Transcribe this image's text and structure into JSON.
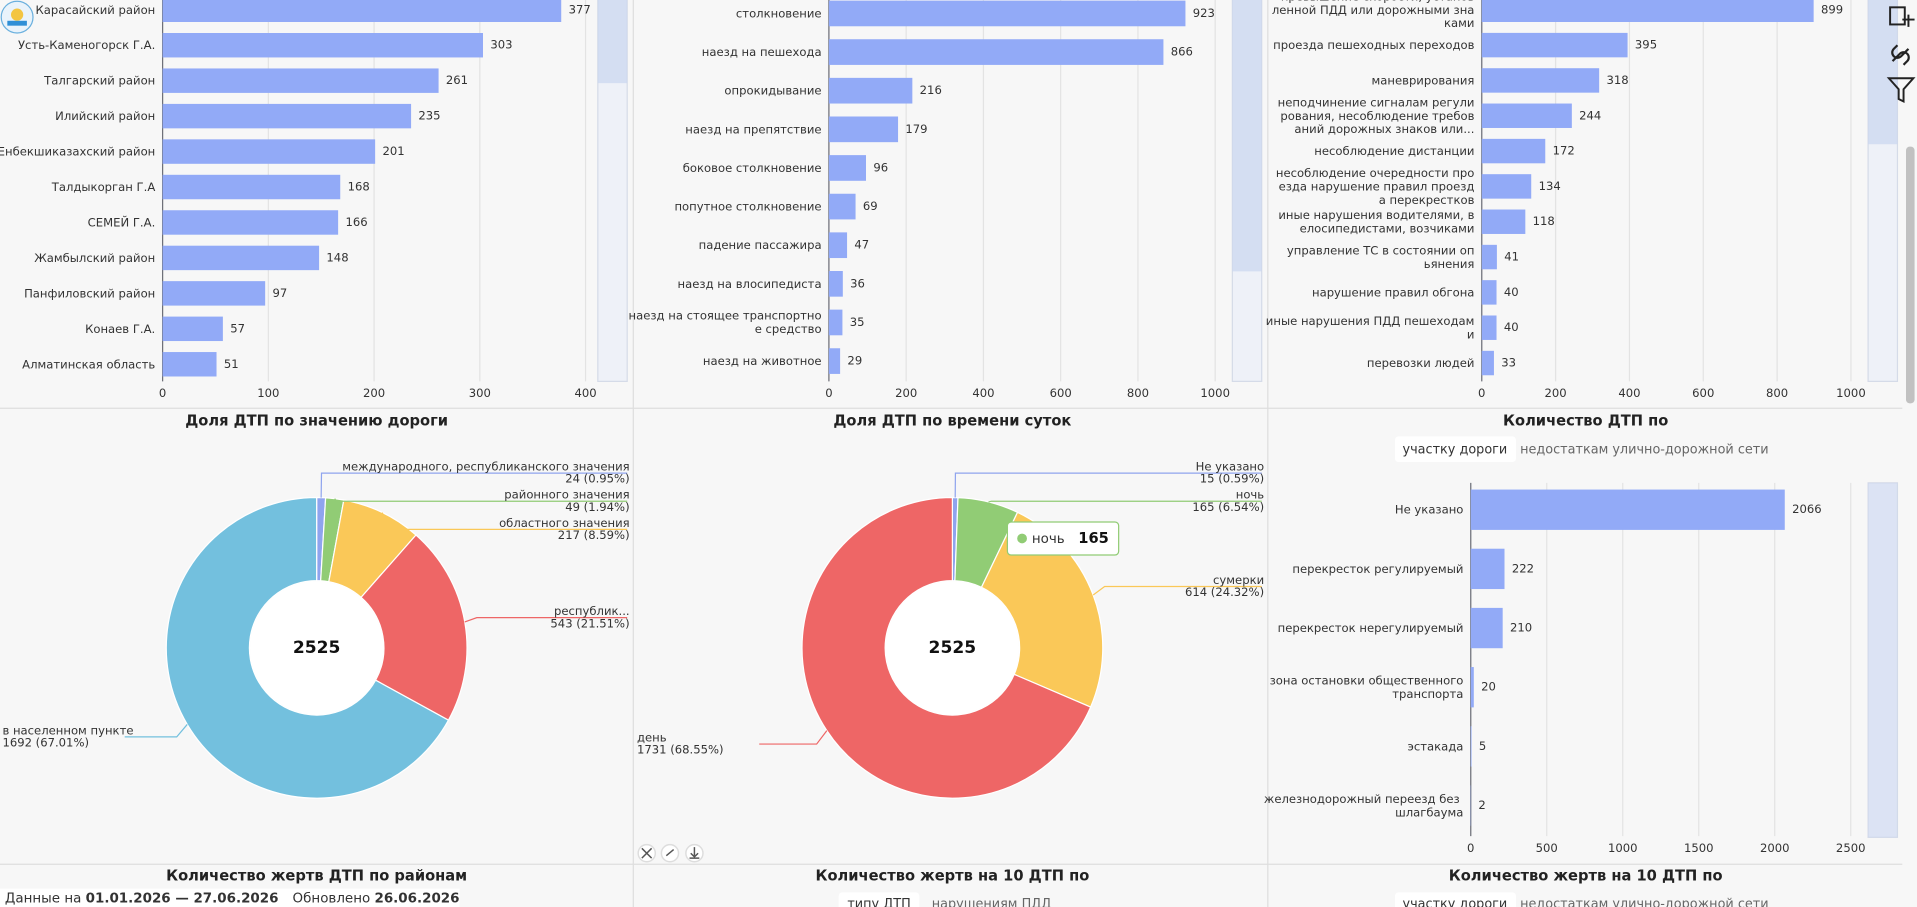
{
  "chart_data": [
    {
      "type": "bar",
      "horizontal": true,
      "color": "#92aaf7",
      "categories": [
        "Карасайский район",
        "Усть-Каменогорск Г.А.",
        "Талгарский район",
        "Илийский район",
        "Енбекшиказахский район",
        "Талдыкорган Г.А",
        "СЕМЕЙ Г.А.",
        "Жамбылский район",
        "Панфиловский район",
        "Конаев Г.А.",
        "Алматинская область"
      ],
      "values": [
        377,
        303,
        261,
        235,
        201,
        168,
        166,
        148,
        97,
        57,
        51
      ],
      "xlim": [
        0,
        410
      ],
      "xticks": [
        0,
        100,
        200,
        300,
        400
      ],
      "grid": true
    },
    {
      "type": "bar",
      "horizontal": true,
      "color": "#92aaf7",
      "categories": [
        "столкновение",
        "наезд на пешехода",
        "опрокидывание",
        "наезд на препятствие",
        "боковое столкновение",
        "попутное столкновение",
        "падение пассажира",
        "наезд на влосипедиста",
        "наезд на стоящее транспортное средство",
        "наезд на животное"
      ],
      "values": [
        923,
        866,
        216,
        179,
        96,
        69,
        47,
        36,
        35,
        29
      ],
      "xlim": [
        0,
        1040
      ],
      "xticks": [
        0,
        200,
        400,
        600,
        800,
        1000
      ],
      "grid": true
    },
    {
      "type": "bar",
      "horizontal": true,
      "color": "#92aaf7",
      "categories": [
        "превышение скорости, установленной ПДД или дорожными знаками",
        "проезда пешеходных переходов",
        "маневрирования",
        "неподчинение сигналам регулирования, несоблюдение требований дорожных знаков или...",
        "несоблюдение дистанции",
        "несоблюдение очередности проезда нарушение правил проезда перекрестков",
        "иные нарушения водителями, велосипедистами, возчиками",
        "управление ТС в состоянии опьянения",
        "нарушение правил обгона",
        "иные нарушения ПДД пешеходами",
        "перевозки людей"
      ],
      "values": [
        899,
        395,
        318,
        244,
        172,
        134,
        118,
        41,
        40,
        40,
        33
      ],
      "xlim": [
        0,
        1020
      ],
      "xticks": [
        0,
        200,
        400,
        600,
        800,
        1000
      ],
      "grid": true
    },
    {
      "type": "pie",
      "donut": true,
      "title": "Доля ДТП по значению дороги",
      "total": 2525,
      "categories": [
        "международного, республиканского значения",
        "районного значения",
        "областного значения",
        "республик...",
        "в населенном пункте"
      ],
      "values": [
        24,
        49,
        217,
        543,
        1692
      ],
      "value_labels": [
        "24 (0.95%)",
        "49 (1.94%)",
        "217 (8.59%)",
        "543 (21.51%)",
        "1692 (67.01%)"
      ],
      "colors": [
        "#8fa4ee",
        "#91cc75",
        "#fac858",
        "#ee6666",
        "#73c0de"
      ]
    },
    {
      "type": "pie",
      "donut": true,
      "title": "Доля ДТП по времени суток",
      "total": 2525,
      "categories": [
        "Не указано",
        "ночь",
        "сумерки",
        "день"
      ],
      "values": [
        15,
        165,
        614,
        1731
      ],
      "value_labels": [
        "15 (0.59%)",
        "165 (6.54%)",
        "614 (24.32%)",
        "1731 (68.55%)"
      ],
      "colors": [
        "#8fa4ee",
        "#91cc75",
        "#fac858",
        "#ee6666"
      ],
      "tooltip": {
        "label": "ночь",
        "value": 165
      }
    },
    {
      "type": "bar",
      "horizontal": true,
      "color": "#92aaf7",
      "title": "Количество ДТП по",
      "tabs": [
        "участку дороги",
        "недостаткам улично-дорожной сети"
      ],
      "categories": [
        "Не указано",
        "перекресток регулируемый",
        "перекресток нерегулируемый",
        "зона остановки общественного транспорта",
        "эстакада",
        "железнодорожный переезд без шлагбаума"
      ],
      "values": [
        2066,
        222,
        210,
        20,
        5,
        2
      ],
      "xlim": [
        0,
        2550
      ],
      "xticks": [
        0,
        500,
        1000,
        1500,
        2000,
        2500
      ],
      "grid": true
    }
  ],
  "panels": [
    {
      "title": "Количество жертв ДТП по районам"
    },
    {
      "title": "Количество жертв на 10 ДТП по",
      "tabs": [
        "типу ДТП",
        "нарушениям ПДД"
      ]
    },
    {
      "title": "Количество жертв на 10 ДТП по",
      "tabs": [
        "участку дороги",
        "недостаткам улично-дорожной сети"
      ]
    }
  ],
  "footer": {
    "data_label": "Данные на",
    "period": "01.01.2026 — 27.06.2026",
    "updated_label": "Обновлено",
    "updated": "26.06.2026"
  }
}
